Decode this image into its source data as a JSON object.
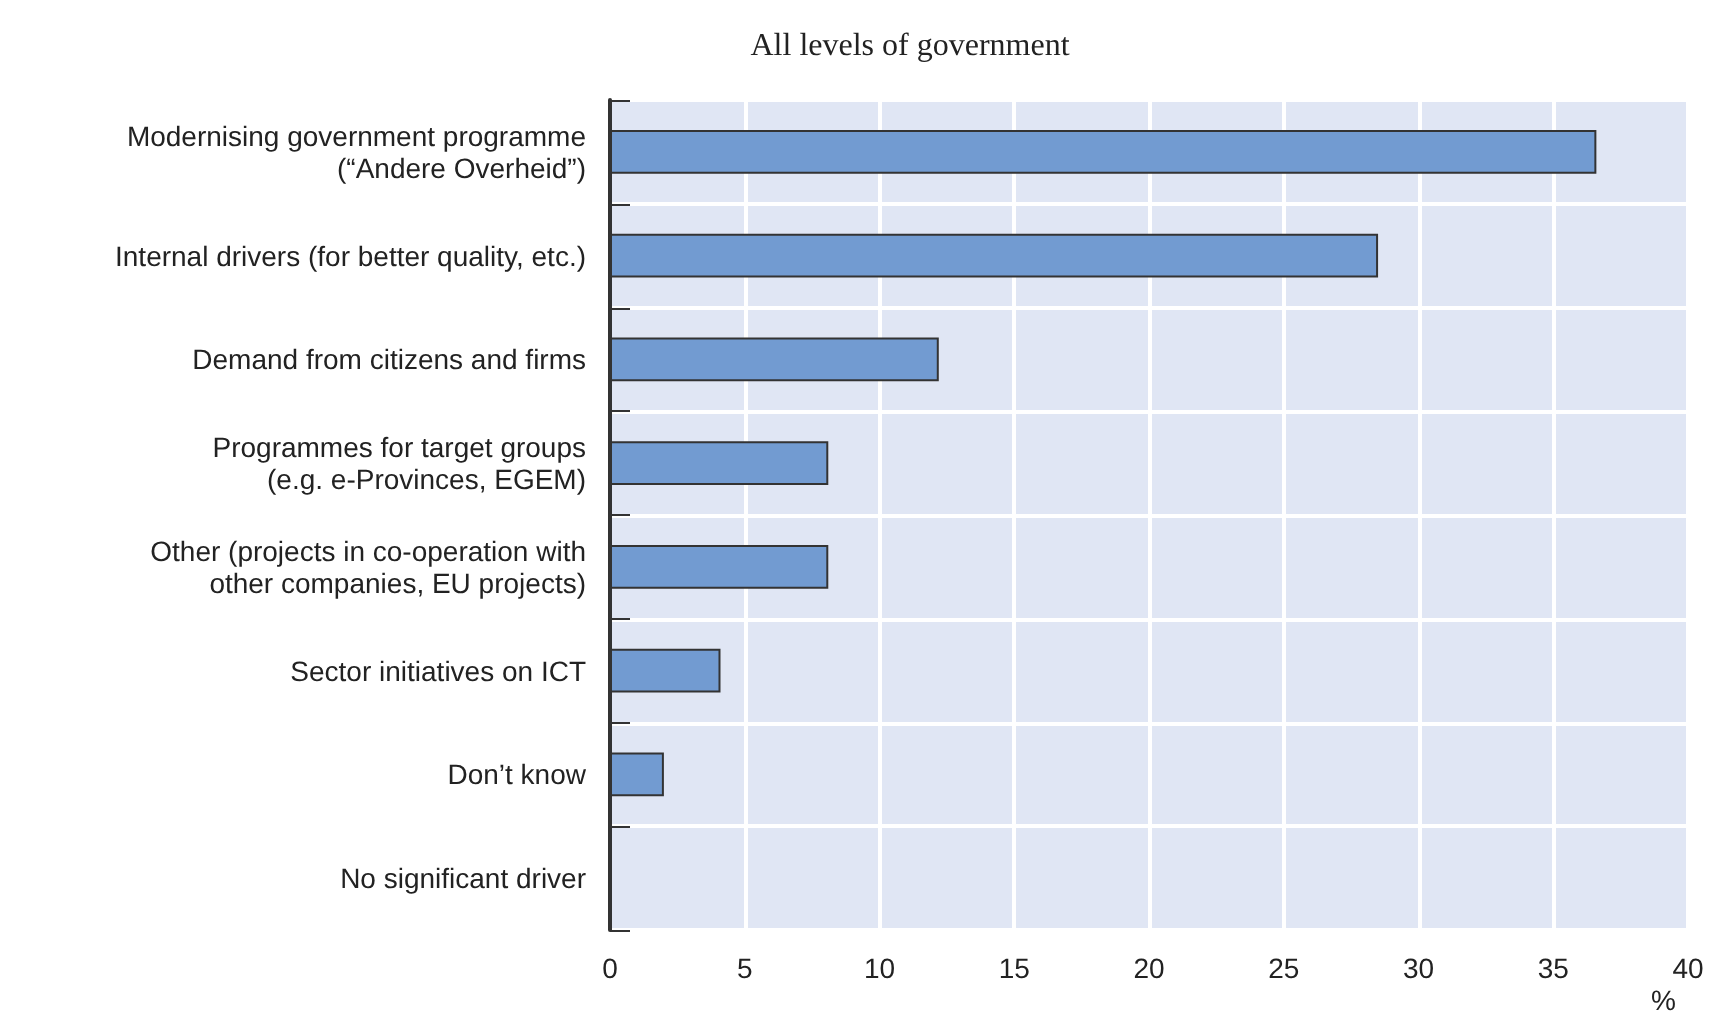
{
  "chart_data": {
    "type": "bar",
    "orientation": "horizontal",
    "title": "All levels of government",
    "xlabel": "%",
    "categories": [
      "Modernising government programme\n(“Andere Overheid”)",
      "Internal drivers (for better quality, etc.)",
      "Demand from citizens and firms",
      "Programmes for target groups\n(e.g. e-Provinces, EGEM)",
      "Other (projects in co-operation with\nother companies, EU projects)",
      "Sector initiatives on ICT",
      "Don’t know",
      "No significant driver"
    ],
    "values": [
      36.6,
      28.5,
      12.2,
      8.1,
      8.1,
      4.1,
      2.0,
      0
    ],
    "color": "#729bd1",
    "xlim": [
      0,
      40
    ],
    "xticks": [
      0,
      5,
      10,
      15,
      20,
      25,
      30,
      35,
      40
    ],
    "grid": true
  }
}
